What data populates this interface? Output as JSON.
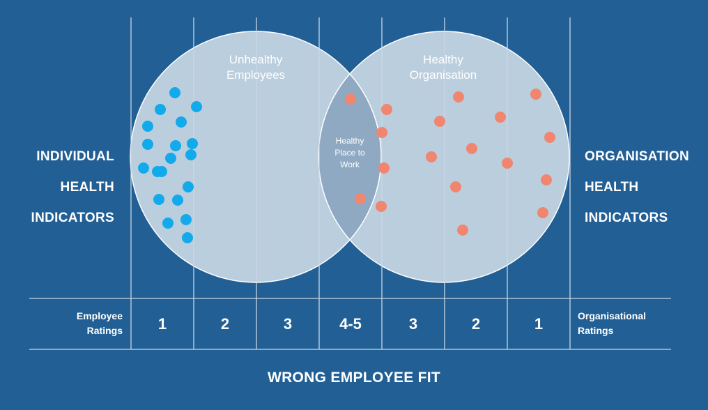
{
  "left_indicator": {
    "lines": [
      "INDIVIDUAL",
      "HEALTH",
      "INDICATORS"
    ]
  },
  "right_indicator": {
    "lines": [
      "ORGANISATION",
      "HEALTH",
      "INDICATORS"
    ]
  },
  "left_circle_title": {
    "lines": [
      "Unhealthy",
      "Employees"
    ]
  },
  "right_circle_title": {
    "lines": [
      "Healthy",
      "Organisation"
    ]
  },
  "overlap_label": {
    "lines": [
      "Healthy",
      "Place to",
      "Work"
    ]
  },
  "employee_ratings_label": {
    "lines": [
      "Employee",
      "Ratings"
    ]
  },
  "organisational_ratings_label": {
    "lines": [
      "Organisational",
      "Ratings"
    ]
  },
  "ratings": [
    "1",
    "2",
    "3",
    "4-5",
    "3",
    "2",
    "1"
  ],
  "footer_title": "WRONG EMPLOYEE FIT",
  "colors": {
    "background": "#215f95",
    "circle_fill": "#dde6ee",
    "overlap_fill": "#8fa9c2",
    "employee_dot": "#12aaeb",
    "organisation_dot": "#f0866f",
    "grid_line": "#c9d7e4"
  },
  "dots": {
    "employee_count": 20,
    "organisation_count": 20
  }
}
